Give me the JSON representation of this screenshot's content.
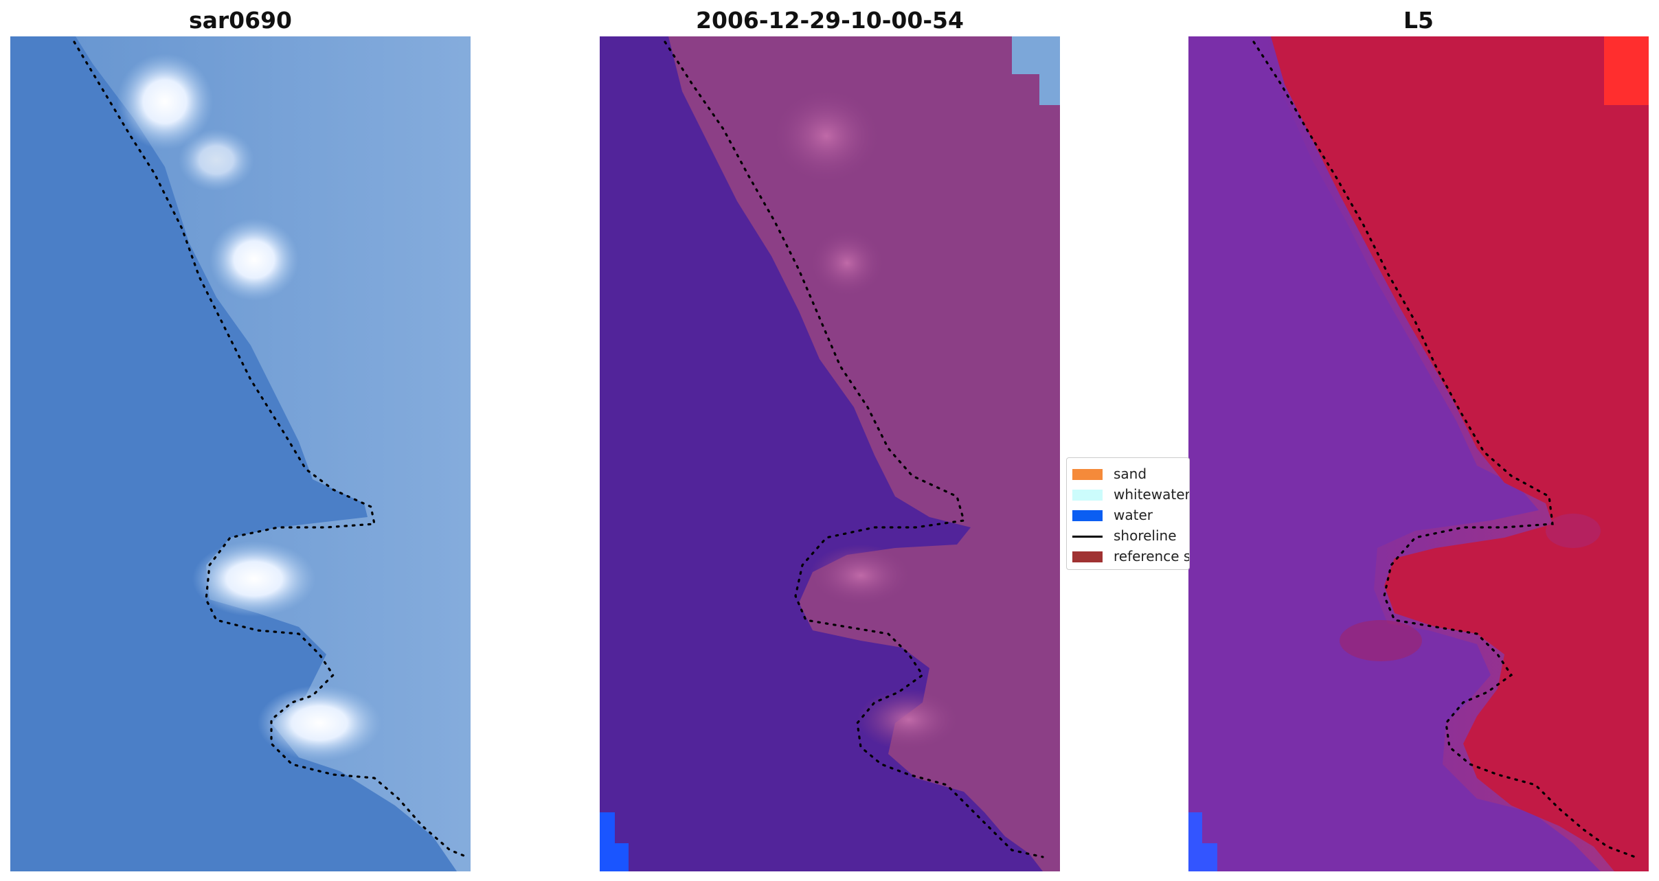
{
  "panels": [
    {
      "title": "sar0690",
      "kind": "rgb-image"
    },
    {
      "title": "2006-12-29-10-00-54",
      "kind": "classified-image"
    },
    {
      "title": "L5",
      "kind": "index-image"
    }
  ],
  "legend": {
    "items": [
      {
        "label": "sand",
        "type": "patch",
        "color": "#f58a3a"
      },
      {
        "label": "whitewater",
        "type": "patch",
        "color": "#ccfcfc"
      },
      {
        "label": "water",
        "type": "patch",
        "color": "#0b5ef2"
      },
      {
        "label": "shoreline",
        "type": "line",
        "color": "#000000"
      },
      {
        "label": "reference shoreline",
        "type": "patch",
        "color": "#a03232"
      }
    ]
  },
  "colors": {
    "panel1_base": "#4a7ec6",
    "panel1_land": "#7fa8d8",
    "panel2_water": "#52249a",
    "panel2_land": "#8c3f86",
    "panel3_water": "#7b2ea8",
    "panel3_land": "#c41a45",
    "water_pixels": "#1a55ff",
    "shoreline_dots": "#000000"
  }
}
